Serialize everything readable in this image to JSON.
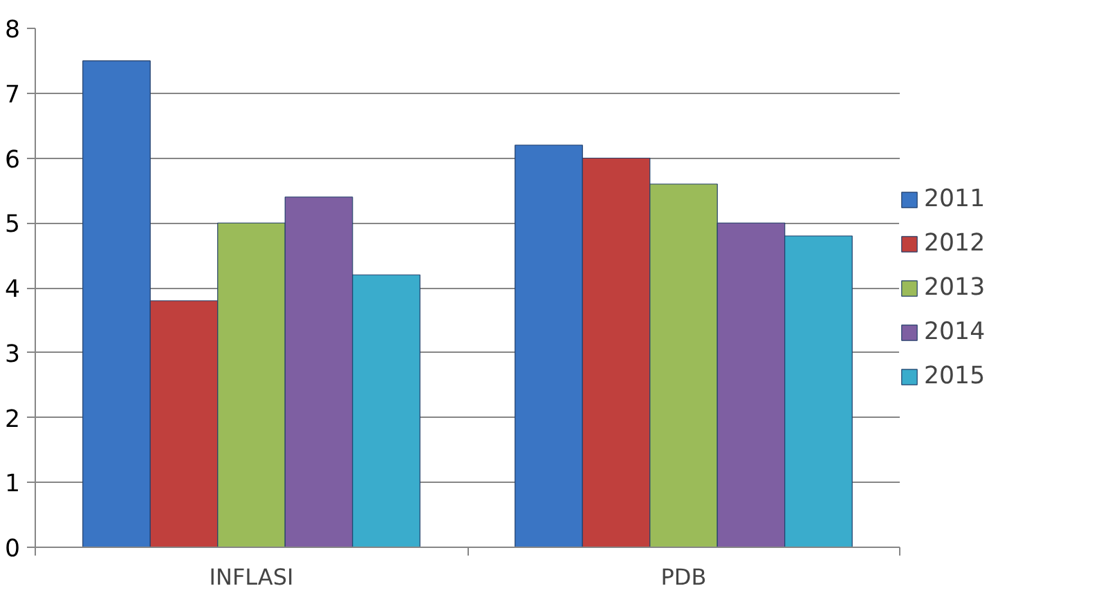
{
  "chart_data": {
    "type": "bar",
    "categories": [
      "INFLASI",
      "PDB"
    ],
    "series": [
      {
        "name": "2011",
        "color": "#3a75c4",
        "values": [
          7.5,
          6.2
        ]
      },
      {
        "name": "2012",
        "color": "#c0403d",
        "values": [
          3.8,
          6.0
        ]
      },
      {
        "name": "2013",
        "color": "#9bbb59",
        "values": [
          5.0,
          5.6
        ]
      },
      {
        "name": "2014",
        "color": "#7e5fa2",
        "values": [
          5.4,
          5.0
        ]
      },
      {
        "name": "2015",
        "color": "#3aaccc",
        "values": [
          4.2,
          4.8
        ]
      }
    ],
    "ylim": [
      0,
      8
    ],
    "yticks": [
      0,
      1,
      2,
      3,
      4,
      5,
      6,
      7,
      8
    ],
    "grid": "y",
    "legend": "right"
  }
}
